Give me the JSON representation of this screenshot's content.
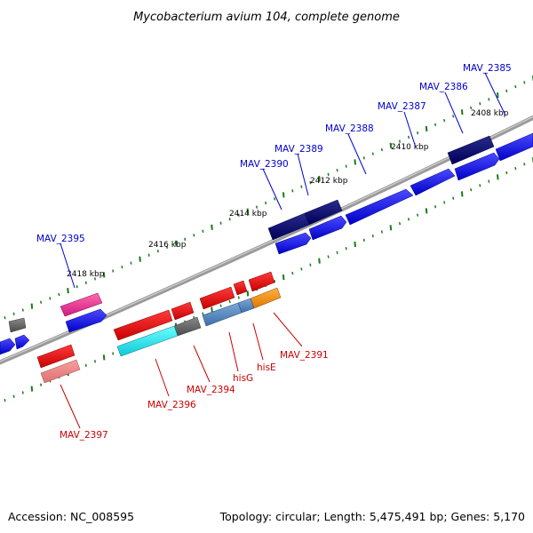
{
  "title": "Mycobacterium avium 104, complete genome",
  "footer": {
    "accession": "Accession: NC_008595",
    "summary": "Topology: circular; Length: 5,475,491 bp; Genes: 5,170"
  },
  "kbp_labels": [
    "2408 kbp",
    "2410 kbp",
    "2412 kbp",
    "2414 kbp",
    "2416 kbp",
    "2418 kbp"
  ],
  "gene_labels": {
    "forward": [
      "MAV_2385",
      "MAV_2386",
      "MAV_2387",
      "MAV_2388",
      "MAV_2389",
      "MAV_2390",
      "MAV_2395"
    ],
    "reverse": [
      "MAV_2391",
      "hisE",
      "hisG",
      "MAV_2394",
      "MAV_2396",
      "MAV_2397"
    ]
  },
  "colors": {
    "forward_label": "#0000cc",
    "reverse_label": "#cc0000",
    "backbone": "#808080",
    "tick": "#1a7a1a"
  }
}
